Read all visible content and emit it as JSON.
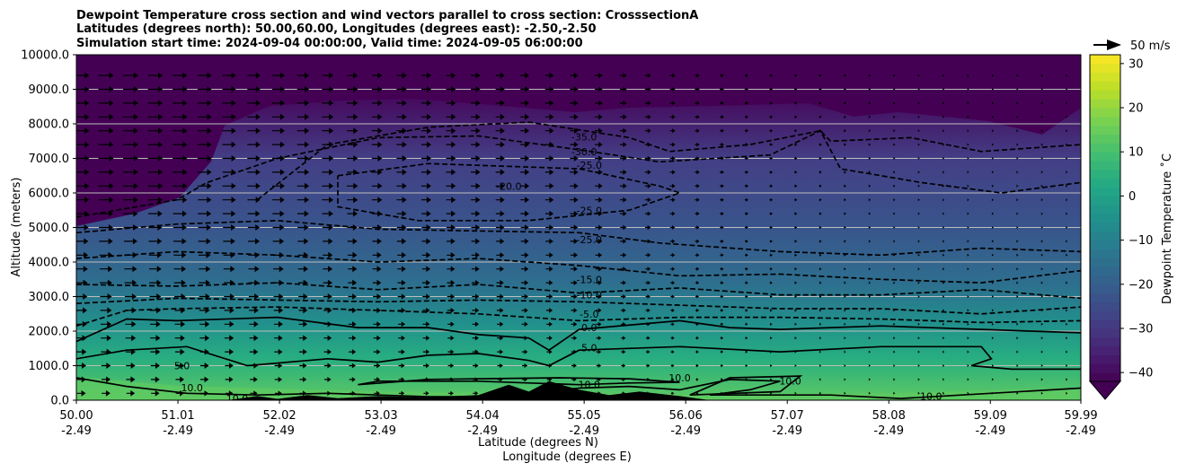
{
  "chart_data": {
    "type": "heatmap",
    "title": [
      "Dewpoint Temperature cross section and wind vectors parallel to cross section: CrosssectionA",
      "Latitudes (degrees north): 50.00,60.00, Longitudes (degrees east): -2.50,-2.50",
      "Simulation start time: 2024-09-04 00:00:00, Valid time: 2024-09-05 06:00:00"
    ],
    "xlabel": "Latitude (degrees N)",
    "xlabel2": "Longitude (degrees E)",
    "ylabel": "Altitude (meters)",
    "xlim": [
      50.0,
      59.99
    ],
    "ylim": [
      0,
      10000
    ],
    "x_ticks": [
      {
        "lat": "50.00",
        "lon": "-2.49",
        "value": 50.0
      },
      {
        "lat": "51.01",
        "lon": "-2.49",
        "value": 51.01
      },
      {
        "lat": "52.02",
        "lon": "-2.49",
        "value": 52.02
      },
      {
        "lat": "53.03",
        "lon": "-2.49",
        "value": 53.03
      },
      {
        "lat": "54.04",
        "lon": "-2.49",
        "value": 54.04
      },
      {
        "lat": "55.05",
        "lon": "-2.49",
        "value": 55.05
      },
      {
        "lat": "56.06",
        "lon": "-2.49",
        "value": 56.06
      },
      {
        "lat": "57.07",
        "lon": "-2.49",
        "value": 57.07
      },
      {
        "lat": "58.08",
        "lon": "-2.49",
        "value": 58.08
      },
      {
        "lat": "59.09",
        "lon": "-2.49",
        "value": 59.09
      },
      {
        "lat": "59.99",
        "lon": "-2.49",
        "value": 59.99
      }
    ],
    "y_ticks": [
      {
        "label": "0.0",
        "value": 0
      },
      {
        "label": "1000.0",
        "value": 1000
      },
      {
        "label": "2000.0",
        "value": 2000
      },
      {
        "label": "3000.0",
        "value": 3000
      },
      {
        "label": "4000.0",
        "value": 4000
      },
      {
        "label": "5000.0",
        "value": 5000
      },
      {
        "label": "6000.0",
        "value": 6000
      },
      {
        "label": "7000.0",
        "value": 7000
      },
      {
        "label": "8000.0",
        "value": 8000
      },
      {
        "label": "9000.0",
        "value": 9000
      },
      {
        "label": "10000.0",
        "value": 10000
      }
    ],
    "grid": "horizontal",
    "colorbar": {
      "label": "Dewpoint Temperature $^\\circ$C",
      "label_text": "Dewpoint Temperature ˚C",
      "min": -42,
      "max": 32,
      "extend": "min",
      "ticks": [
        {
          "label": "30",
          "value": 30
        },
        {
          "label": "20",
          "value": 20
        },
        {
          "label": "10",
          "value": 10
        },
        {
          "label": "0",
          "value": 0
        },
        {
          "label": "−10",
          "value": -10
        },
        {
          "label": "−20",
          "value": -20
        },
        {
          "label": "−30",
          "value": -30
        },
        {
          "label": "−40",
          "value": -40
        }
      ],
      "colormap": "viridis"
    },
    "quiver_key": {
      "label": "50 m/s",
      "speed": 50
    },
    "contours": [
      {
        "level": -35,
        "style": "dashed",
        "points": [
          [
            51.8,
            5800
          ],
          [
            52.5,
            7400
          ],
          [
            53.5,
            7900
          ],
          [
            54.5,
            8050
          ],
          [
            55.5,
            7600
          ],
          [
            55.9,
            7200
          ],
          [
            56.7,
            7400
          ],
          [
            57.4,
            7800
          ],
          [
            57.5,
            7500
          ],
          [
            58.3,
            7600
          ],
          [
            59.0,
            7200
          ],
          [
            59.99,
            7400
          ]
        ]
      },
      {
        "level": -30,
        "style": "dashed",
        "points": [
          [
            50.0,
            5300
          ],
          [
            51.0,
            5800
          ],
          [
            51.3,
            6300
          ],
          [
            52.0,
            7000
          ],
          [
            53.0,
            7600
          ],
          [
            54.0,
            7650
          ],
          [
            55.0,
            7250
          ],
          [
            55.8,
            6900
          ],
          [
            56.9,
            7100
          ],
          [
            57.4,
            7800
          ],
          [
            57.6,
            6700
          ],
          [
            58.4,
            6300
          ],
          [
            59.2,
            6000
          ],
          [
            59.99,
            6300
          ]
        ]
      },
      {
        "level": -25,
        "style": "dashed",
        "points": [
          [
            52.6,
            6500
          ],
          [
            53.5,
            6850
          ],
          [
            55.0,
            6700
          ],
          [
            55.8,
            6200
          ],
          [
            56.0,
            6000
          ],
          [
            55.5,
            5500
          ],
          [
            54.5,
            5200
          ],
          [
            53.4,
            5200
          ],
          [
            52.6,
            5600
          ],
          [
            52.6,
            6500
          ]
        ]
      },
      {
        "level": -25,
        "style": "dashed",
        "points": [
          [
            50.0,
            4850
          ],
          [
            51.0,
            5100
          ],
          [
            52.0,
            5200
          ],
          [
            53.0,
            4950
          ],
          [
            54.0,
            4900
          ],
          [
            55.0,
            4850
          ],
          [
            55.8,
            4550
          ],
          [
            57.0,
            4300
          ],
          [
            58.0,
            4200
          ],
          [
            59.0,
            4400
          ],
          [
            59.99,
            4300
          ]
        ]
      },
      {
        "level": -20,
        "style": "dashed",
        "points": [
          [
            50.0,
            4100
          ],
          [
            51.0,
            4300
          ],
          [
            52.0,
            4200
          ],
          [
            53.0,
            4000
          ],
          [
            54.0,
            4100
          ],
          [
            55.0,
            3900
          ],
          [
            56.0,
            3600
          ],
          [
            57.0,
            3650
          ],
          [
            58.0,
            3500
          ],
          [
            59.0,
            3400
          ],
          [
            59.99,
            3750
          ]
        ]
      },
      {
        "level": -15,
        "style": "dashed",
        "points": [
          [
            50.0,
            3350
          ],
          [
            51.0,
            3300
          ],
          [
            52.0,
            3400
          ],
          [
            53.0,
            3200
          ],
          [
            54.0,
            3350
          ],
          [
            55.0,
            3100
          ],
          [
            56.0,
            3250
          ],
          [
            57.0,
            3050
          ],
          [
            58.0,
            3050
          ],
          [
            59.0,
            3200
          ],
          [
            59.99,
            2950
          ]
        ]
      },
      {
        "level": -10,
        "style": "dashed",
        "points": [
          [
            50.0,
            2800
          ],
          [
            51.0,
            2950
          ],
          [
            52.0,
            2900
          ],
          [
            53.0,
            2850
          ],
          [
            54.0,
            2900
          ],
          [
            55.0,
            2850
          ],
          [
            56.0,
            2750
          ],
          [
            57.0,
            2650
          ],
          [
            58.0,
            2650
          ],
          [
            59.0,
            2500
          ],
          [
            59.99,
            2700
          ]
        ]
      },
      {
        "level": -5,
        "style": "dashed",
        "points": [
          [
            50.0,
            2150
          ],
          [
            50.5,
            2600
          ],
          [
            51.0,
            2650
          ],
          [
            52.0,
            2700
          ],
          [
            53.0,
            2600
          ],
          [
            54.0,
            2500
          ],
          [
            55.0,
            2300
          ],
          [
            56.0,
            2400
          ],
          [
            57.0,
            2400
          ],
          [
            58.0,
            2350
          ],
          [
            59.0,
            2250
          ],
          [
            59.99,
            2300
          ]
        ]
      },
      {
        "level": 0,
        "style": "solid",
        "points": [
          [
            50.0,
            1700
          ],
          [
            50.5,
            2350
          ],
          [
            51.0,
            2300
          ],
          [
            52.0,
            2400
          ],
          [
            52.8,
            2100
          ],
          [
            53.5,
            2100
          ],
          [
            54.0,
            1900
          ],
          [
            54.5,
            1800
          ],
          [
            54.7,
            1450
          ],
          [
            55.0,
            2050
          ],
          [
            56.0,
            2300
          ],
          [
            56.5,
            2100
          ],
          [
            57.0,
            2050
          ],
          [
            58.0,
            2150
          ],
          [
            59.0,
            2050
          ],
          [
            59.99,
            1950
          ]
        ]
      },
      {
        "level": 5,
        "style": "solid",
        "points": [
          [
            50.0,
            1200
          ],
          [
            50.5,
            1450
          ],
          [
            51.1,
            1550
          ],
          [
            51.7,
            1000
          ],
          [
            52.5,
            1200
          ],
          [
            53.0,
            1100
          ],
          [
            53.5,
            1300
          ],
          [
            54.0,
            1350
          ],
          [
            54.5,
            1150
          ],
          [
            54.7,
            1000
          ],
          [
            55.0,
            1450
          ],
          [
            56.0,
            1550
          ],
          [
            57.0,
            1400
          ],
          [
            58.0,
            1550
          ],
          [
            59.0,
            1550
          ],
          [
            59.1,
            1200
          ],
          [
            58.9,
            1000
          ],
          [
            59.3,
            900
          ],
          [
            59.99,
            900
          ]
        ]
      },
      {
        "level": 10,
        "style": "solid",
        "points": [
          [
            50.0,
            650
          ],
          [
            50.5,
            400
          ],
          [
            51.1,
            200
          ],
          [
            51.8,
            150
          ],
          [
            52.5,
            200
          ],
          [
            53.0,
            150
          ],
          [
            53.5,
            100
          ],
          [
            54.0,
            100
          ],
          [
            54.5,
            200
          ],
          [
            55.0,
            350
          ],
          [
            55.5,
            400
          ],
          [
            56.0,
            300
          ],
          [
            56.5,
            600
          ],
          [
            57.0,
            550
          ],
          [
            56.7,
            300
          ],
          [
            56.3,
            150
          ],
          [
            57.5,
            150
          ],
          [
            58.2,
            50
          ]
        ]
      },
      {
        "level": 10,
        "style": "solid",
        "points": [
          [
            52.8,
            450
          ],
          [
            53.0,
            550
          ],
          [
            54.0,
            550
          ],
          [
            54.5,
            500
          ],
          [
            55.0,
            450
          ],
          [
            55.5,
            500
          ],
          [
            56.0,
            520
          ],
          [
            55.5,
            620
          ],
          [
            54.8,
            650
          ],
          [
            54.0,
            620
          ],
          [
            53.5,
            600
          ],
          [
            52.8,
            450
          ]
        ]
      },
      {
        "level": 10,
        "style": "solid",
        "points": [
          [
            56.1,
            150
          ],
          [
            56.5,
            650
          ],
          [
            57.2,
            700
          ],
          [
            57.0,
            250
          ],
          [
            56.1,
            150
          ]
        ]
      },
      {
        "level": 10,
        "style": "solid",
        "points": [
          [
            58.2,
            50
          ],
          [
            59.99,
            350
          ]
        ]
      }
    ],
    "contour_labels": [
      {
        "text": "-35.0",
        "x": 55.05,
        "y": 7620
      },
      {
        "text": "-30.0",
        "x": 55.05,
        "y": 7200
      },
      {
        "text": "-25.0",
        "x": 55.1,
        "y": 6800
      },
      {
        "text": "-20.0",
        "x": 54.3,
        "y": 6200
      },
      {
        "text": "-25.0",
        "x": 55.1,
        "y": 5500
      },
      {
        "text": "-25.0",
        "x": 55.1,
        "y": 4650
      },
      {
        "text": "-15.0",
        "x": 55.1,
        "y": 3500
      },
      {
        "text": "-10.0",
        "x": 55.1,
        "y": 3050
      },
      {
        "text": "-5.0",
        "x": 55.1,
        "y": 2500
      },
      {
        "text": "0.0",
        "x": 55.1,
        "y": 2100
      },
      {
        "text": "5.0",
        "x": 55.1,
        "y": 1520
      },
      {
        "text": "5.0",
        "x": 51.05,
        "y": 1000
      },
      {
        "text": "10.0",
        "x": 51.15,
        "y": 360
      },
      {
        "text": "10.0",
        "x": 51.6,
        "y": 50
      },
      {
        "text": "10.0",
        "x": 55.1,
        "y": 460
      },
      {
        "text": "10.0",
        "x": 56.0,
        "y": 650
      },
      {
        "text": "10.0",
        "x": 57.1,
        "y": 560
      },
      {
        "text": "10.0",
        "x": 58.5,
        "y": 120
      }
    ],
    "wind": {
      "description": "wind vectors parallel to cross section, pointing toward increasing latitude",
      "levels_m": [
        200,
        600,
        1000,
        1400,
        1800,
        2200,
        2600,
        3000,
        3400,
        3800,
        4200,
        4600,
        5000,
        5400,
        5800,
        6200,
        6600,
        7000,
        7400,
        7800,
        8200,
        8600,
        9000,
        9400
      ],
      "speed_ms_by_latitude": [
        [
          50.0,
          30
        ],
        [
          51.0,
          28
        ],
        [
          52.0,
          24
        ],
        [
          53.0,
          20
        ],
        [
          54.0,
          18
        ],
        [
          55.0,
          16
        ],
        [
          56.0,
          10
        ],
        [
          57.0,
          6
        ],
        [
          58.0,
          4
        ],
        [
          59.0,
          3
        ],
        [
          59.99,
          2
        ]
      ]
    },
    "terrain": [
      [
        50.0,
        0
      ],
      [
        51.5,
        0
      ],
      [
        51.8,
        120
      ],
      [
        52.0,
        40
      ],
      [
        52.3,
        150
      ],
      [
        52.6,
        60
      ],
      [
        53.0,
        120
      ],
      [
        53.5,
        80
      ],
      [
        54.0,
        150
      ],
      [
        54.3,
        450
      ],
      [
        54.5,
        250
      ],
      [
        54.7,
        550
      ],
      [
        55.0,
        300
      ],
      [
        55.3,
        150
      ],
      [
        55.6,
        250
      ],
      [
        56.0,
        120
      ],
      [
        56.3,
        0
      ],
      [
        59.99,
        0
      ]
    ]
  }
}
